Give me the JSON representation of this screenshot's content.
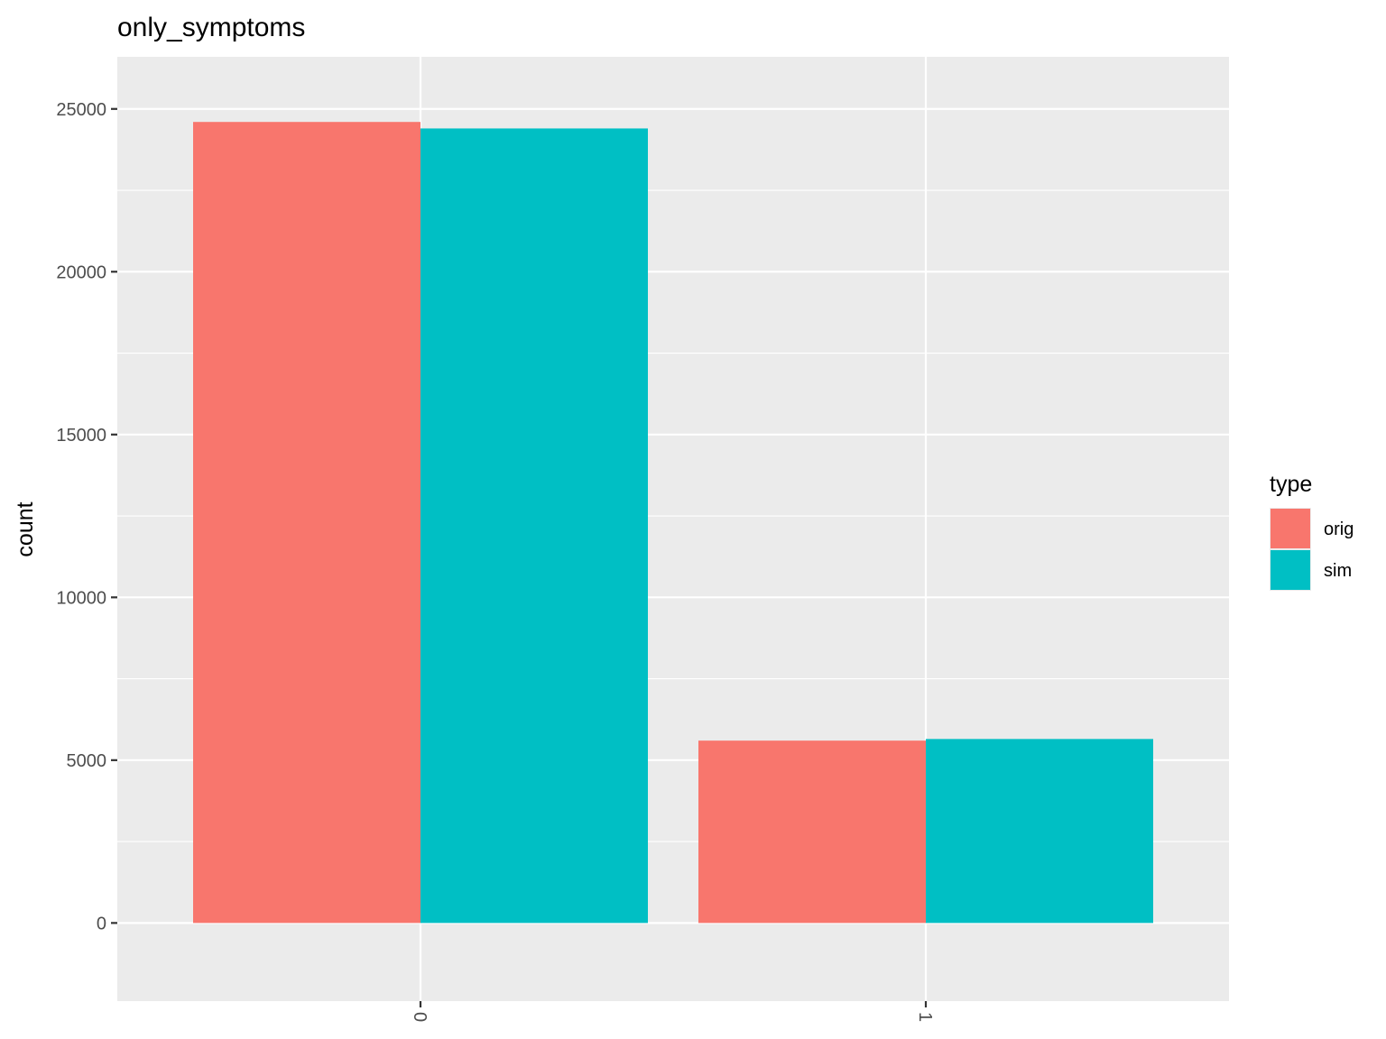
{
  "chart_data": {
    "type": "bar",
    "title": "only_symptoms",
    "xlabel": "",
    "ylabel": "count",
    "categories": [
      "0",
      "1"
    ],
    "series": [
      {
        "name": "orig",
        "values": [
          24600,
          5600
        ],
        "color": "#F8766D"
      },
      {
        "name": "sim",
        "values": [
          24400,
          5650
        ],
        "color": "#00BFC4"
      }
    ],
    "ylim": [
      -2400,
      26600
    ],
    "yticks": [
      0,
      5000,
      10000,
      15000,
      20000,
      25000
    ],
    "ytick_labels": [
      "0",
      "5000",
      "10000",
      "15000",
      "20000",
      "25000"
    ],
    "xtick_rotation": "rotated 90 degrees",
    "legend": {
      "title": "type",
      "position": "right"
    },
    "grid": true,
    "panel_background": "#EBEBEB",
    "grid_color": "#FFFFFF"
  }
}
